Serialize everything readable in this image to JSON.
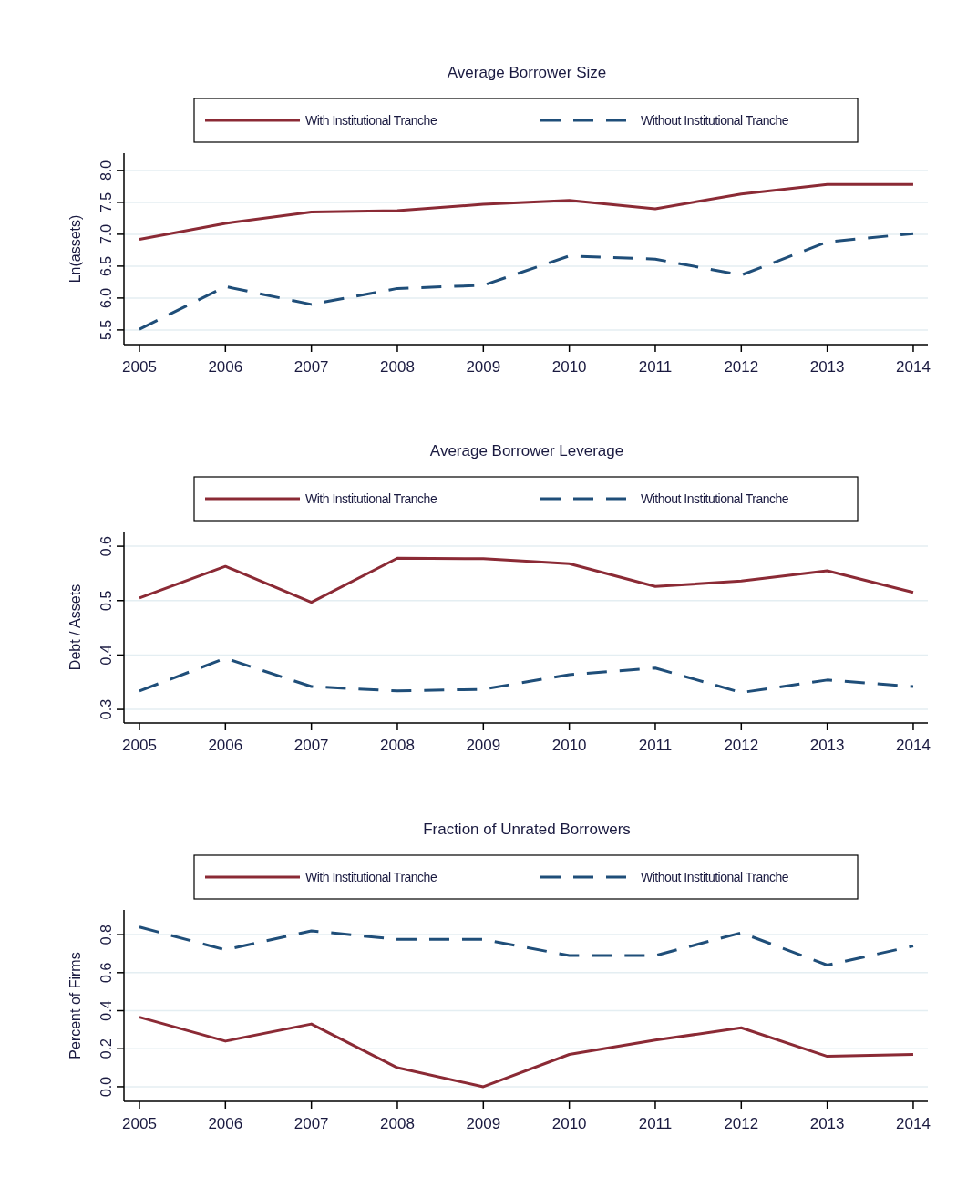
{
  "chart_data": [
    {
      "type": "line",
      "title": "Average Borrower Size",
      "ylabel": "Ln(assets)",
      "x": [
        2005,
        2006,
        2007,
        2008,
        2009,
        2010,
        2011,
        2012,
        2013,
        2014
      ],
      "xlim": [
        2004.82,
        2014.17
      ],
      "xticks": [
        2005,
        2006,
        2007,
        2008,
        2009,
        2010,
        2011,
        2012,
        2013,
        2014
      ],
      "ylim": [
        5.27,
        8.27
      ],
      "yticks": [
        5.5,
        {
          "value": 6,
          "label": "6.0"
        },
        6.5,
        {
          "value": 7,
          "label": "7.0"
        },
        7.5,
        {
          "value": 8,
          "label": "8.0"
        }
      ],
      "grid": "y",
      "legend": "top",
      "marker": "none",
      "series": [
        {
          "name": "With Institutional Tranche",
          "color": "#8b2a35",
          "line_style": "solid",
          "values": [
            6.92,
            7.17,
            7.35,
            7.37,
            7.47,
            7.53,
            7.4,
            7.63,
            7.78,
            7.78
          ]
        },
        {
          "name": "Without Institutional Tranche",
          "color": "#1f4e79",
          "line_style": "dashed",
          "values": [
            5.51,
            6.18,
            5.9,
            6.15,
            6.2,
            6.66,
            6.61,
            6.36,
            6.88,
            7.01
          ]
        }
      ]
    },
    {
      "type": "line",
      "title": "Average Borrower Leverage",
      "ylabel": "Debt / Assets",
      "x": [
        2005,
        2006,
        2007,
        2008,
        2009,
        2010,
        2011,
        2012,
        2013,
        2014
      ],
      "xlim": [
        2004.82,
        2014.17
      ],
      "xticks": [
        2005,
        2006,
        2007,
        2008,
        2009,
        2010,
        2011,
        2012,
        2013,
        2014
      ],
      "ylim": [
        0.275,
        0.627
      ],
      "yticks": [
        0.3,
        0.4,
        0.5,
        0.6
      ],
      "grid": "y",
      "legend": "top",
      "marker": "none",
      "series": [
        {
          "name": "With Institutional Tranche",
          "color": "#8b2a35",
          "line_style": "solid",
          "values": [
            0.505,
            0.563,
            0.497,
            0.578,
            0.577,
            0.568,
            0.526,
            0.536,
            0.555,
            0.515
          ]
        },
        {
          "name": "Without Institutional Tranche",
          "color": "#1f4e79",
          "line_style": "dashed",
          "values": [
            0.334,
            0.394,
            0.342,
            0.334,
            0.337,
            0.364,
            0.376,
            0.331,
            0.354,
            0.342
          ]
        }
      ]
    },
    {
      "type": "line",
      "title": "Fraction of Unrated Borrowers",
      "ylabel": "Percent of Firms",
      "x": [
        2005,
        2006,
        2007,
        2008,
        2009,
        2010,
        2011,
        2012,
        2013,
        2014
      ],
      "xlim": [
        2004.82,
        2014.17
      ],
      "xticks": [
        2005,
        2006,
        2007,
        2008,
        2009,
        2010,
        2011,
        2012,
        2013,
        2014
      ],
      "ylim": [
        -0.077,
        0.93
      ],
      "yticks": [
        {
          "value": 0,
          "label": "0.0"
        },
        0.2,
        0.4,
        0.6,
        0.8
      ],
      "grid": "y",
      "legend": "top",
      "marker": "none",
      "series": [
        {
          "name": "With Institutional Tranche",
          "color": "#8b2a35",
          "line_style": "solid",
          "values": [
            0.366,
            0.24,
            0.33,
            0.1,
            0,
            0.17,
            0.245,
            0.31,
            0.16,
            0.17
          ]
        },
        {
          "name": "Without Institutional Tranche",
          "color": "#1f4e79",
          "line_style": "dashed",
          "values": [
            0.84,
            0.72,
            0.82,
            0.775,
            0.775,
            0.69,
            0.69,
            0.81,
            0.64,
            0.74
          ]
        }
      ]
    }
  ]
}
